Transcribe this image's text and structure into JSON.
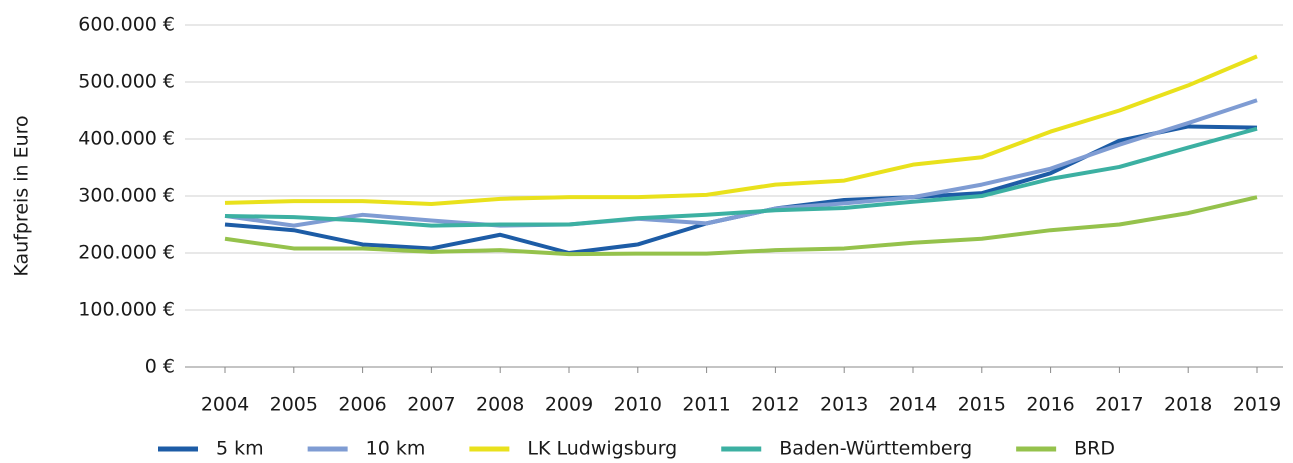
{
  "chart_data": {
    "type": "line",
    "y_label": "Kaufpreis in Euro",
    "categories": [
      "2004",
      "2005",
      "2006",
      "2007",
      "2008",
      "2009",
      "2010",
      "2011",
      "2012",
      "2013",
      "2014",
      "2015",
      "2016",
      "2017",
      "2018",
      "2019"
    ],
    "series": [
      {
        "name": "5 km",
        "color": "#1d5ca6",
        "values": [
          250000,
          240000,
          215000,
          208000,
          232000,
          200000,
          215000,
          252000,
          278000,
          293000,
          298000,
          305000,
          340000,
          397000,
          422000,
          420000
        ]
      },
      {
        "name": "10 km",
        "color": "#7f9cd3",
        "values": [
          265000,
          248000,
          267000,
          257000,
          248000,
          250000,
          260000,
          252000,
          278000,
          287000,
          298000,
          320000,
          348000,
          390000,
          428000,
          468000
        ]
      },
      {
        "name": "LK Ludwigsburg",
        "color": "#e9e11c",
        "values": [
          288000,
          291000,
          291000,
          286000,
          295000,
          298000,
          298000,
          302000,
          320000,
          327000,
          355000,
          368000,
          413000,
          450000,
          494000,
          545000
        ]
      },
      {
        "name": "Baden-Württemberg",
        "color": "#3cb0a2",
        "values": [
          265000,
          263000,
          257000,
          248000,
          250000,
          250000,
          261000,
          267000,
          275000,
          279000,
          290000,
          300000,
          330000,
          351000,
          385000,
          418000
        ]
      },
      {
        "name": "BRD",
        "color": "#95c24c",
        "values": [
          225000,
          208000,
          208000,
          202000,
          205000,
          198000,
          199000,
          199000,
          205000,
          208000,
          218000,
          225000,
          240000,
          250000,
          270000,
          298000
        ]
      }
    ],
    "ylim": [
      0,
      600000
    ],
    "yticks": [
      {
        "value": 0,
        "label": "0 €"
      },
      {
        "value": 100000,
        "label": "100.000 €"
      },
      {
        "value": 200000,
        "label": "200.000 €"
      },
      {
        "value": 300000,
        "label": "300.000 €"
      },
      {
        "value": 400000,
        "label": "400.000 €"
      },
      {
        "value": 500000,
        "label": "500.000 €"
      },
      {
        "value": 600000,
        "label": "600.000 €"
      }
    ],
    "grid": true,
    "legend": "bottom"
  }
}
